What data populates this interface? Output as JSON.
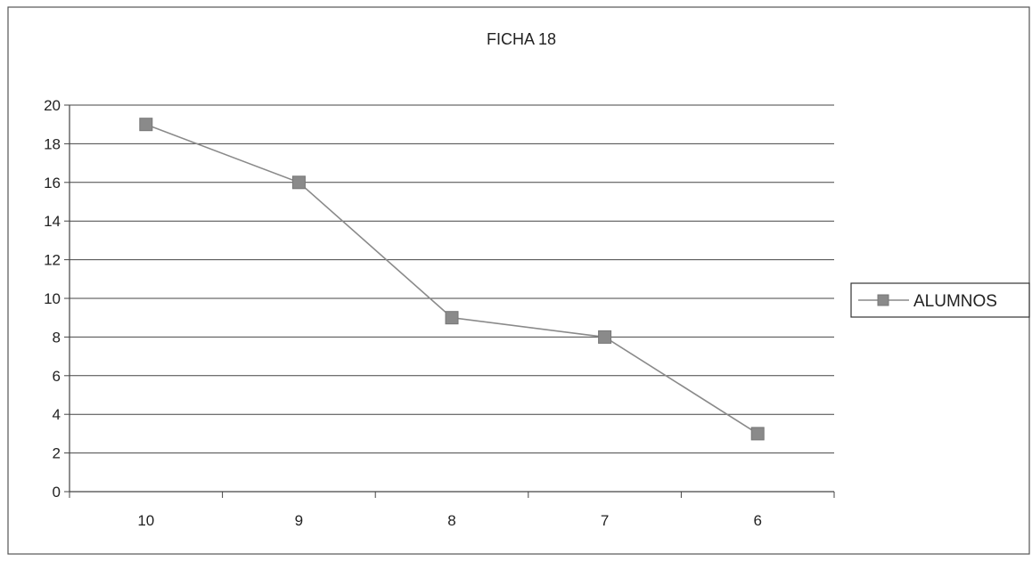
{
  "chart_data": {
    "type": "line",
    "title": "FICHA 18",
    "xlabel": "",
    "ylabel": "",
    "categories": [
      "10",
      "9",
      "8",
      "7",
      "6"
    ],
    "series": [
      {
        "name": "ALUMNOS",
        "values": [
          19,
          16,
          9,
          8,
          3
        ],
        "color": "#8a8a8a",
        "marker": "square"
      }
    ],
    "ylim": [
      0,
      20
    ],
    "yticks": [
      0,
      2,
      4,
      6,
      8,
      10,
      12,
      14,
      16,
      18,
      20
    ],
    "grid": true,
    "legend_position": "right"
  }
}
